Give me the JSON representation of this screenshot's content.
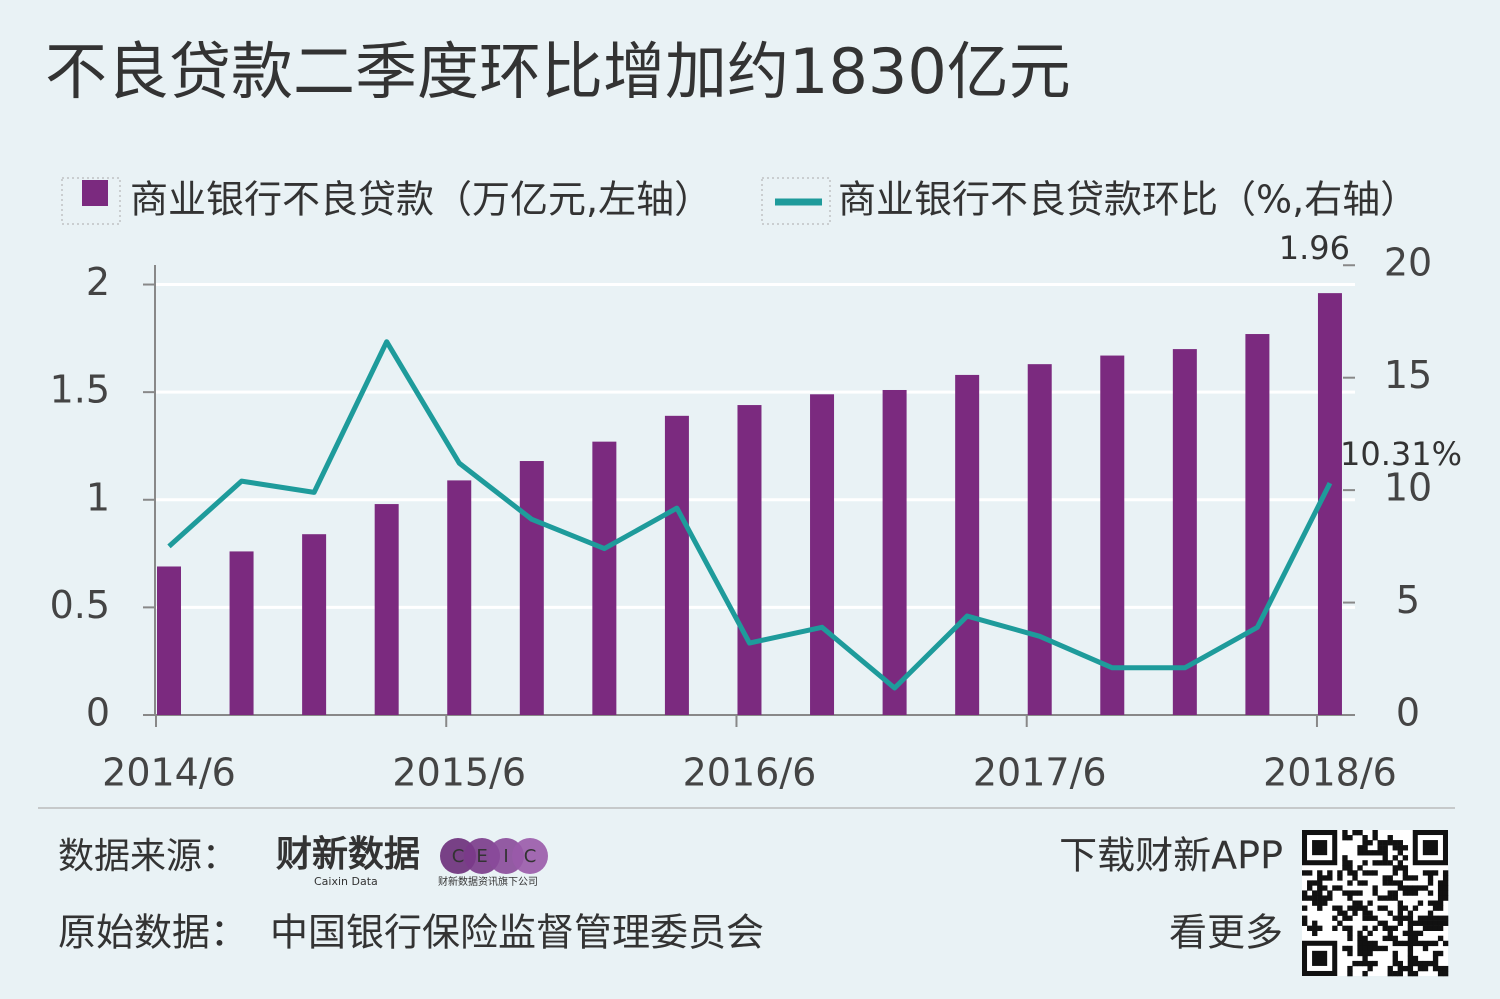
{
  "chart_data": {
    "type": "bar-line",
    "title": "不良贷款二季度环比增加约1830亿元",
    "categories": [
      "2014/6",
      null,
      null,
      null,
      "2015/6",
      null,
      null,
      null,
      "2016/6",
      null,
      null,
      null,
      "2017/6",
      null,
      null,
      null,
      "2018/6"
    ],
    "series": [
      {
        "name": "商业银行不良贷款（万亿元,左轴）",
        "type": "bar",
        "color": "#7b2a7f",
        "values": [
          0.69,
          0.76,
          0.84,
          0.98,
          1.09,
          1.18,
          1.27,
          1.39,
          1.44,
          1.49,
          1.51,
          1.58,
          1.63,
          1.67,
          1.7,
          1.77,
          1.96
        ]
      },
      {
        "name": "商业银行不良贷款环比（%,右轴）",
        "type": "line",
        "axis": "y2",
        "color": "#1e9b9b",
        "values": [
          7.5,
          10.4,
          9.9,
          16.6,
          11.2,
          8.7,
          7.4,
          9.2,
          3.2,
          3.9,
          1.2,
          4.4,
          3.5,
          2.1,
          2.1,
          3.9,
          10.31
        ],
        "value_labels": [
          null,
          null,
          null,
          null,
          null,
          null,
          null,
          null,
          null,
          null,
          null,
          null,
          null,
          null,
          null,
          null,
          "10.31%"
        ]
      }
    ],
    "ylim": [
      0,
      2.1
    ],
    "yticks": [
      0,
      0.5,
      1,
      1.5,
      2
    ],
    "y2lim": [
      0,
      20.1
    ],
    "y2ticks": [
      0,
      5,
      10,
      15,
      20
    ],
    "grid": true
  },
  "footer": {
    "source_label": "数据来源：",
    "logo": "财新数据",
    "logo_sub": "Caixin Data",
    "ceic": [
      "C",
      "E",
      "I",
      "C"
    ],
    "ceic_sub": "财新数据资讯旗下公司",
    "original_label": "原始数据：",
    "original": "中国银行保险监督管理委员会",
    "app": "下载财新APP",
    "more": "看更多"
  }
}
